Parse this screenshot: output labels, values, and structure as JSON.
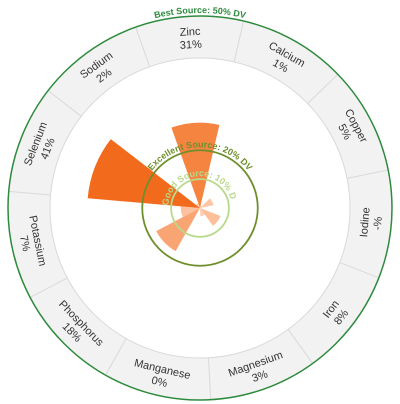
{
  "chart_data": {
    "type": "polar-area",
    "unit": "% DV",
    "nutrients": [
      {
        "name": "Calcium",
        "value_label": "1%",
        "value": 1
      },
      {
        "name": "Copper",
        "value_label": "5%",
        "value": 5
      },
      {
        "name": "Iodine",
        "value_label": "-%",
        "value": null
      },
      {
        "name": "Iron",
        "value_label": "8%",
        "value": 8
      },
      {
        "name": "Magnesium",
        "value_label": "3%",
        "value": 3
      },
      {
        "name": "Manganese",
        "value_label": "0%",
        "value": 0
      },
      {
        "name": "Phosphorus",
        "value_label": "18%",
        "value": 18
      },
      {
        "name": "Potassium",
        "value_label": "7%",
        "value": 7
      },
      {
        "name": "Selenium",
        "value_label": "41%",
        "value": 41
      },
      {
        "name": "Sodium",
        "value_label": "2%",
        "value": 2
      },
      {
        "name": "Zinc",
        "value_label": "31%",
        "value": 31
      }
    ],
    "thresholds": [
      {
        "label": "Good Source: 10% DV",
        "value": 10,
        "color": "#b9d98a"
      },
      {
        "label": "Excellent Source: 20% DV",
        "value": 20,
        "color": "#6e8f2c"
      },
      {
        "label": "Best Source: 50% DV",
        "value": 50,
        "color": "#2e8b3e"
      }
    ],
    "colors": {
      "low": "#ffd3b8",
      "high": "#f26a1b",
      "label_ring_fill": "#f2f2f2",
      "label_ring_stroke": "#d9d9d9",
      "segment_text": "#333333"
    }
  }
}
